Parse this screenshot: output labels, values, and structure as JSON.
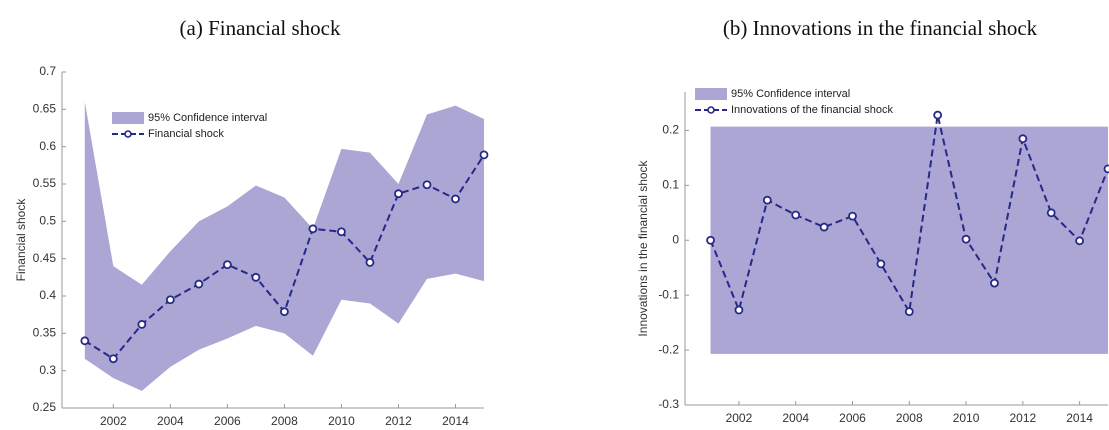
{
  "chart_data": [
    {
      "type": "line",
      "title": "(a) Financial shock",
      "ylabel": "Financial shock",
      "x": [
        2001,
        2002,
        2003,
        2004,
        2005,
        2006,
        2007,
        2008,
        2009,
        2010,
        2011,
        2012,
        2013,
        2014,
        2015
      ],
      "band": {
        "name": "95% Confidence interval",
        "color": "#aba6d4",
        "upper": [
          0.66,
          0.44,
          0.415,
          0.46,
          0.5,
          0.52,
          0.548,
          0.532,
          0.49,
          0.597,
          0.592,
          0.55,
          0.643,
          0.655,
          0.637
        ],
        "lower": [
          0.316,
          0.29,
          0.273,
          0.305,
          0.328,
          0.343,
          0.36,
          0.35,
          0.32,
          0.395,
          0.39,
          0.363,
          0.423,
          0.43,
          0.42
        ]
      },
      "series": [
        {
          "name": "Financial shock",
          "color": "#26288a",
          "values": [
            0.34,
            0.316,
            0.362,
            0.395,
            0.416,
            0.442,
            0.425,
            0.379,
            0.49,
            0.486,
            0.445,
            0.537,
            0.549,
            0.53,
            0.589
          ]
        }
      ],
      "xlim": [
        2000.2,
        2015
      ],
      "ylim": [
        0.25,
        0.7
      ],
      "xticks": [
        2002,
        2004,
        2006,
        2008,
        2010,
        2012,
        2014
      ],
      "yticks": [
        0.25,
        0.3,
        0.35,
        0.4,
        0.45,
        0.5,
        0.55,
        0.6,
        0.65,
        0.7
      ],
      "legend": "upper left"
    },
    {
      "type": "line",
      "title": "(b) Innovations in the financial shock",
      "ylabel": "Innovations in the financial shock",
      "x": [
        2001,
        2002,
        2003,
        2004,
        2005,
        2006,
        2007,
        2008,
        2009,
        2010,
        2011,
        2012,
        2013,
        2014,
        2015
      ],
      "band": {
        "name": "95% Confidence interval",
        "color": "#aba6d4",
        "upper": [
          0.207,
          0.207,
          0.207,
          0.207,
          0.207,
          0.207,
          0.207,
          0.207,
          0.207,
          0.207,
          0.207,
          0.207,
          0.207,
          0.207,
          0.207
        ],
        "lower": [
          -0.207,
          -0.207,
          -0.207,
          -0.207,
          -0.207,
          -0.207,
          -0.207,
          -0.207,
          -0.207,
          -0.207,
          -0.207,
          -0.207,
          -0.207,
          -0.207,
          -0.207
        ]
      },
      "series": [
        {
          "name": "Innovations of the financial shock",
          "color": "#26288a",
          "values": [
            0,
            -0.127,
            0.073,
            0.046,
            0.024,
            0.044,
            -0.043,
            -0.13,
            0.228,
            0.002,
            -0.078,
            0.185,
            0.05,
            -0.001,
            0.13
          ]
        }
      ],
      "xlim": [
        2000.1,
        2015
      ],
      "ylim": [
        -0.3,
        0.27
      ],
      "xticks": [
        2002,
        2004,
        2006,
        2008,
        2010,
        2012,
        2014
      ],
      "yticks": [
        -0.3,
        -0.2,
        -0.1,
        0,
        0.1,
        0.2
      ],
      "legend": "upper left"
    }
  ]
}
